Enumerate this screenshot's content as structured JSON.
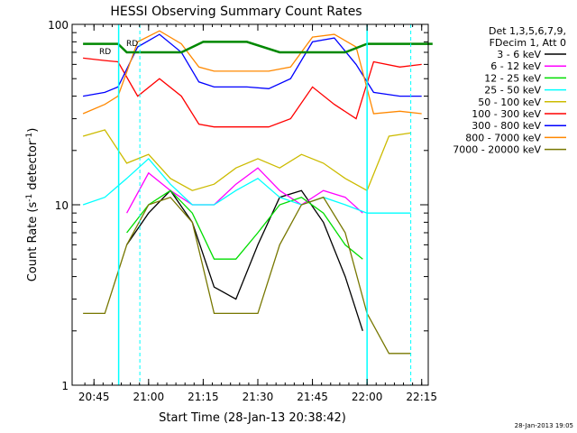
{
  "chart_data": {
    "type": "line",
    "title": "HESSI Observing Summary Count Rates",
    "xlabel": "Start Time (28-Jan-13 20:38:42)",
    "ylabel_main": "Count Rate (s",
    "ylabel_sup1": "-1",
    "ylabel_mid": " detector",
    "ylabel_sup2": "-1",
    "ylabel_end": ")",
    "yscale": "log",
    "ylim": [
      1,
      100
    ],
    "xlim_minutes": [
      20.65,
      22.28
    ],
    "x_unit": "hours of day",
    "x_ticks": [
      {
        "value": 20.75,
        "label": "20:45"
      },
      {
        "value": 21.0,
        "label": "21:00"
      },
      {
        "value": 21.25,
        "label": "21:15"
      },
      {
        "value": 21.5,
        "label": "21:30"
      },
      {
        "value": 21.75,
        "label": "21:45"
      },
      {
        "value": 22.0,
        "label": "22:00"
      },
      {
        "value": 22.25,
        "label": "22:15"
      }
    ],
    "y_ticks": [
      {
        "value": 1,
        "label": "1"
      },
      {
        "value": 10,
        "label": "10"
      },
      {
        "value": 100,
        "label": "100"
      }
    ],
    "legend": {
      "placement": "right",
      "header1": "Det 1,3,5,6,7,9,",
      "header2": "FDecim 1, Att 0",
      "entries": [
        {
          "label": "3 - 6 keV",
          "color": "#000000"
        },
        {
          "label": "6 - 12 keV",
          "color": "#ff00ff"
        },
        {
          "label": "12 - 25 keV",
          "color": "#00dd00"
        },
        {
          "label": "25 - 50 keV",
          "color": "#00ffff"
        },
        {
          "label": "50 - 100 keV",
          "color": "#ccbb00"
        },
        {
          "label": "100 - 300 keV",
          "color": "#ff0000"
        },
        {
          "label": "300 - 800 keV",
          "color": "#0000ff"
        },
        {
          "label": "800 - 7000 keV",
          "color": "#ff8800"
        },
        {
          "label": "7000 - 20000 keV",
          "color": "#777700"
        }
      ]
    },
    "annotations": [
      "RD",
      "RD"
    ],
    "night_markers": [
      20.863,
      22.0
    ],
    "saa_markers": [
      20.96,
      22.2
    ],
    "series": [
      {
        "name": "3 - 6 keV",
        "color": "#000000",
        "x": [
          20.9,
          21.0,
          21.1,
          21.2,
          21.3,
          21.4,
          21.5,
          21.6,
          21.7,
          21.8,
          21.9,
          21.98
        ],
        "y": [
          6,
          9,
          12,
          8,
          3.5,
          3,
          6,
          11,
          12,
          8,
          4,
          2
        ]
      },
      {
        "name": "6 - 12 keV",
        "color": "#ff00ff",
        "x": [
          20.9,
          21.0,
          21.1,
          21.2,
          21.3,
          21.4,
          21.5,
          21.6,
          21.7,
          21.8,
          21.9,
          21.98
        ],
        "y": [
          9,
          15,
          12,
          10,
          10,
          13,
          16,
          12,
          10,
          12,
          11,
          9
        ]
      },
      {
        "name": "12 - 25 keV",
        "color": "#00dd00",
        "x": [
          20.9,
          21.0,
          21.1,
          21.2,
          21.3,
          21.4,
          21.5,
          21.6,
          21.7,
          21.8,
          21.9,
          21.98
        ],
        "y": [
          7,
          10,
          12,
          9,
          5,
          5,
          7,
          10,
          11,
          9,
          6,
          5
        ]
      },
      {
        "name": "25 - 50 keV",
        "color": "#00ffff",
        "x": [
          20.7,
          20.8,
          20.9,
          21.0,
          21.1,
          21.2,
          21.3,
          21.4,
          21.5,
          21.6,
          21.7,
          21.8,
          21.9,
          22.0,
          22.1,
          22.2
        ],
        "y": [
          10,
          11,
          14,
          18,
          13,
          10,
          10,
          12,
          14,
          11,
          10,
          11,
          10,
          9,
          9,
          9
        ]
      },
      {
        "name": "50 - 100 keV",
        "color": "#ccbb00",
        "x": [
          20.7,
          20.8,
          20.9,
          21.0,
          21.1,
          21.2,
          21.3,
          21.4,
          21.5,
          21.6,
          21.7,
          21.8,
          21.9,
          22.0,
          22.1,
          22.2
        ],
        "y": [
          24,
          26,
          17,
          19,
          14,
          12,
          13,
          16,
          18,
          16,
          19,
          17,
          14,
          12,
          24,
          25
        ]
      },
      {
        "name": "100 - 300 keV",
        "color": "#ff0000",
        "x": [
          20.7,
          20.8,
          20.86,
          20.95,
          21.05,
          21.15,
          21.23,
          21.3,
          21.45,
          21.55,
          21.65,
          21.75,
          21.85,
          21.95,
          22.03,
          22.15,
          22.25
        ],
        "y": [
          65,
          63,
          62,
          40,
          50,
          40,
          28,
          27,
          27,
          27,
          30,
          45,
          36,
          30,
          62,
          58,
          60
        ]
      },
      {
        "name": "300 - 800 keV",
        "color": "#0000ff",
        "x": [
          20.7,
          20.8,
          20.86,
          20.95,
          21.05,
          21.15,
          21.23,
          21.3,
          21.45,
          21.55,
          21.65,
          21.75,
          21.85,
          21.95,
          22.03,
          22.15,
          22.25
        ],
        "y": [
          40,
          42,
          45,
          75,
          88,
          70,
          48,
          45,
          45,
          44,
          50,
          80,
          84,
          60,
          42,
          40,
          40
        ]
      },
      {
        "name": "800 - 7000 keV",
        "color": "#ff8800",
        "x": [
          20.7,
          20.8,
          20.86,
          20.95,
          21.05,
          21.15,
          21.23,
          21.3,
          21.45,
          21.55,
          21.65,
          21.75,
          21.85,
          21.95,
          22.03,
          22.15,
          22.25
        ],
        "y": [
          32,
          36,
          40,
          80,
          92,
          78,
          58,
          55,
          55,
          55,
          58,
          85,
          88,
          75,
          32,
          33,
          32
        ]
      },
      {
        "name": "7000 - 20000 keV",
        "color": "#777700",
        "x": [
          20.7,
          20.8,
          20.9,
          21.0,
          21.1,
          21.2,
          21.3,
          21.4,
          21.5,
          21.6,
          21.7,
          21.8,
          21.9,
          22.0,
          22.1,
          22.2
        ],
        "y": [
          2.5,
          2.5,
          6,
          10,
          11,
          8,
          2.5,
          2.5,
          2.5,
          6,
          10,
          11,
          7,
          2.5,
          1.5,
          1.5
        ]
      },
      {
        "name": "attenuator level",
        "color": "#008800",
        "x": [
          20.7,
          20.86,
          20.9,
          21.0,
          21.15,
          21.25,
          21.45,
          21.6,
          21.75,
          21.9,
          22.0,
          22.3
        ],
        "y": [
          78,
          78,
          70,
          70,
          70,
          80,
          80,
          70,
          70,
          70,
          78,
          78
        ]
      }
    ]
  },
  "footer_date": "28-Jan-2013 19:05"
}
